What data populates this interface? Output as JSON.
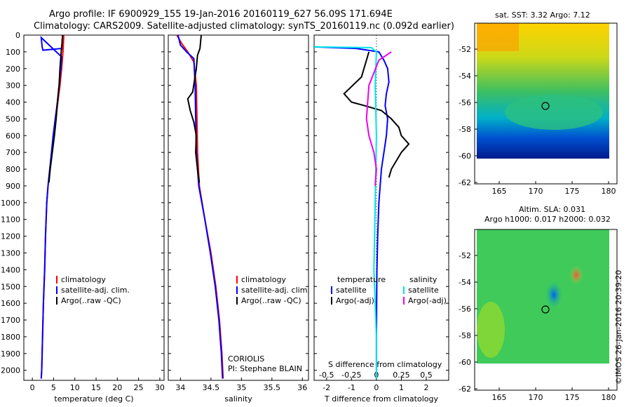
{
  "header": {
    "line1": "Argo profile: IF 6900929_155 19-Jan-2016 20160119_627 56.09S 171.694E",
    "line2": "Climatology: CARS2009. Satellite-adjusted climatology: synTS_20160119.nc (0.092d earlier)"
  },
  "depth_ticks": [
    "0",
    "100",
    "200",
    "300",
    "400",
    "500",
    "600",
    "700",
    "800",
    "900",
    "1000",
    "1100",
    "1200",
    "1300",
    "1400",
    "1500",
    "1600",
    "1700",
    "1800",
    "1900",
    "2000"
  ],
  "map_top": {
    "title": "sat. SST: 3.32 Argo: 7.12"
  },
  "map_bottom": {
    "title1": "Altim. SLA: 0.031",
    "title2": "Argo h1000: 0.017 h2000: 0.032"
  },
  "lat_ticks": [
    "-52",
    "-54",
    "-56",
    "-58",
    "-60",
    "-62"
  ],
  "lon_ticks": [
    "165",
    "170",
    "175",
    "180"
  ],
  "timestamp": "©IMOS 26-Jan-2016 20:39:20",
  "colors": {
    "red": "#ff0000",
    "blue": "#0000ff",
    "black": "#000000",
    "cyan": "#00e5ee",
    "magenta": "#ee00ee"
  },
  "chart_data": [
    {
      "type": "line",
      "xlabel": "temperature (deg C)",
      "x_ticks": [
        "0",
        "5",
        "10",
        "15",
        "20",
        "25",
        "30"
      ],
      "xlim": [
        -2,
        31
      ],
      "ylim": [
        2060,
        0
      ],
      "legend": [
        "climatology",
        "satellite-adj. clim.",
        "Argo(..raw -QC)"
      ],
      "series": [
        {
          "name": "climatology",
          "color": "red",
          "points": [
            [
              7.4,
              0
            ],
            [
              7.2,
              100
            ],
            [
              6.9,
              200
            ],
            [
              6.5,
              300
            ],
            [
              6.0,
              400
            ],
            [
              5.5,
              500
            ],
            [
              5.0,
              600
            ],
            [
              4.6,
              700
            ],
            [
              4.1,
              800
            ],
            [
              3.7,
              900
            ],
            [
              3.4,
              1000
            ],
            [
              3.1,
              1200
            ],
            [
              2.9,
              1400
            ],
            [
              2.6,
              1600
            ],
            [
              2.4,
              1800
            ],
            [
              2.2,
              2000
            ],
            [
              2.1,
              2050
            ]
          ]
        },
        {
          "name": "satellite-adj. clim.",
          "color": "blue",
          "points": [
            [
              7.1,
              0
            ],
            [
              7.0,
              50
            ],
            [
              6.9,
              80
            ],
            [
              2.5,
              90
            ],
            [
              2.3,
              70
            ],
            [
              2.1,
              15
            ],
            [
              6.9,
              130
            ],
            [
              6.7,
              200
            ],
            [
              6.3,
              300
            ],
            [
              5.9,
              400
            ],
            [
              5.4,
              500
            ],
            [
              4.9,
              600
            ],
            [
              4.5,
              700
            ],
            [
              4.1,
              800
            ],
            [
              3.7,
              900
            ],
            [
              3.4,
              1000
            ],
            [
              3.1,
              1200
            ],
            [
              2.9,
              1400
            ],
            [
              2.6,
              1600
            ],
            [
              2.4,
              1800
            ],
            [
              2.2,
              2000
            ],
            [
              2.1,
              2050
            ]
          ]
        },
        {
          "name": "Argo(..raw -QC)",
          "color": "black",
          "points": [
            [
              7.1,
              0
            ],
            [
              7.0,
              50
            ],
            [
              6.8,
              100
            ],
            [
              6.5,
              200
            ],
            [
              6.3,
              300
            ],
            [
              5.9,
              400
            ],
            [
              5.6,
              500
            ],
            [
              5.2,
              600
            ],
            [
              4.7,
              700
            ],
            [
              4.2,
              800
            ],
            [
              3.9,
              880
            ]
          ]
        }
      ]
    },
    {
      "type": "line",
      "xlabel": "salinity",
      "x_ticks": [
        "34",
        "34.5",
        "35",
        "35.5",
        "36"
      ],
      "xlim": [
        33.8,
        36.1
      ],
      "ylim": [
        2060,
        0
      ],
      "legend": [
        "climatology",
        "satellite-adj. clim.",
        "Argo(..raw -QC)"
      ],
      "annotation": [
        "CORIOLIS",
        "PI: Stephane BLAIN"
      ],
      "series": [
        {
          "name": "climatology",
          "color": "red",
          "points": [
            [
              33.94,
              0
            ],
            [
              34.02,
              50
            ],
            [
              34.12,
              100
            ],
            [
              34.22,
              160
            ],
            [
              34.26,
              300
            ],
            [
              34.27,
              500
            ],
            [
              34.28,
              700
            ],
            [
              34.31,
              900
            ],
            [
              34.4,
              1100
            ],
            [
              34.5,
              1300
            ],
            [
              34.58,
              1500
            ],
            [
              34.64,
              1700
            ],
            [
              34.68,
              1900
            ],
            [
              34.7,
              2050
            ]
          ]
        },
        {
          "name": "satellite-adj. clim.",
          "color": "blue",
          "points": [
            [
              33.96,
              0
            ],
            [
              34.0,
              60
            ],
            [
              34.1,
              100
            ],
            [
              34.22,
              140
            ],
            [
              34.24,
              300
            ],
            [
              34.25,
              500
            ],
            [
              34.26,
              700
            ],
            [
              34.3,
              900
            ],
            [
              34.4,
              1100
            ],
            [
              34.49,
              1300
            ],
            [
              34.57,
              1500
            ],
            [
              34.63,
              1700
            ],
            [
              34.67,
              1900
            ],
            [
              34.69,
              2050
            ]
          ]
        },
        {
          "name": "Argo(..raw -QC)",
          "color": "black",
          "points": [
            [
              34.34,
              0
            ],
            [
              34.32,
              80
            ],
            [
              34.28,
              120
            ],
            [
              34.26,
              200
            ],
            [
              34.2,
              340
            ],
            [
              34.12,
              380
            ],
            [
              34.16,
              450
            ],
            [
              34.22,
              520
            ],
            [
              34.26,
              600
            ],
            [
              34.25,
              700
            ],
            [
              34.28,
              800
            ],
            [
              34.31,
              880
            ]
          ]
        }
      ]
    },
    {
      "type": "line",
      "xlabel": "T difference from climatology",
      "xlabel_top": "S difference from climatology",
      "x_ticks": [
        "-2",
        "-1",
        "0",
        "1",
        "2"
      ],
      "x_ticks_s": [
        "-0.5",
        "-0.25",
        "0",
        "0.25",
        "0.5"
      ],
      "xlim": [
        -2.5,
        2.9
      ],
      "ylim": [
        2060,
        0
      ],
      "legend_temp_title": "temperature",
      "legend_sal_title": "salinity",
      "legend": [
        "satellite",
        "Argo(-adj)",
        "satellite",
        "Argo(-adj)"
      ],
      "series": [
        {
          "name": "satellite",
          "color": "blue",
          "points": [
            [
              -2.5,
              70
            ],
            [
              -0.8,
              80
            ],
            [
              0.1,
              100
            ],
            [
              0.3,
              150
            ],
            [
              0.45,
              200
            ],
            [
              0.5,
              280
            ],
            [
              0.4,
              350
            ],
            [
              0.35,
              420
            ],
            [
              0.45,
              500
            ],
            [
              0.4,
              600
            ],
            [
              0.3,
              700
            ],
            [
              0.2,
              800
            ],
            [
              0.15,
              900
            ],
            [
              0.1,
              1000
            ],
            [
              0.05,
              1200
            ],
            [
              0.02,
              1400
            ],
            [
              0.01,
              1600
            ],
            [
              0.0,
              1800
            ],
            [
              0.0,
              2050
            ]
          ]
        },
        {
          "name": "Argo(-adj)",
          "color": "black",
          "points": [
            [
              -0.3,
              100
            ],
            [
              -0.6,
              250
            ],
            [
              -1.3,
              350
            ],
            [
              -1.0,
              400
            ],
            [
              -0.5,
              420
            ],
            [
              0.2,
              450
            ],
            [
              0.6,
              500
            ],
            [
              0.9,
              550
            ],
            [
              1.0,
              600
            ],
            [
              1.3,
              650
            ],
            [
              1.0,
              700
            ],
            [
              0.8,
              750
            ],
            [
              0.6,
              800
            ],
            [
              0.5,
              850
            ]
          ]
        },
        {
          "name": "satellite",
          "color": "cyan",
          "points": [
            [
              -2.5,
              70
            ],
            [
              -0.2,
              75
            ],
            [
              0.0,
              100
            ],
            [
              -0.05,
              300
            ],
            [
              0.0,
              600
            ],
            [
              -0.05,
              1000
            ],
            [
              -0.1,
              1400
            ],
            [
              -0.05,
              1600
            ],
            [
              0.0,
              1800
            ],
            [
              0.0,
              2050
            ]
          ]
        },
        {
          "name": "Argo(-adj)",
          "color": "magenta",
          "points": [
            [
              0.6,
              100
            ],
            [
              0.1,
              150
            ],
            [
              -0.3,
              300
            ],
            [
              -0.4,
              500
            ],
            [
              -0.3,
              600
            ],
            [
              -0.1,
              700
            ],
            [
              0.0,
              800
            ],
            [
              -0.05,
              900
            ]
          ]
        }
      ]
    }
  ]
}
